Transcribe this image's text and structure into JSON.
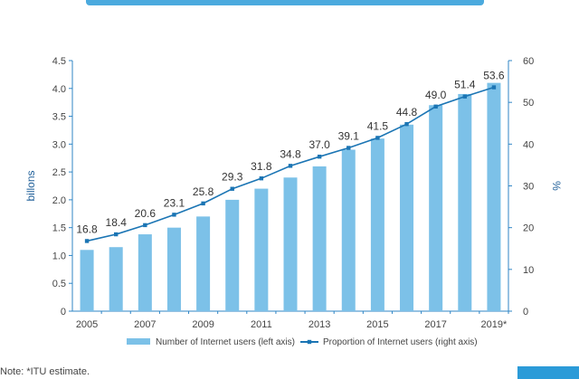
{
  "colors": {
    "bar": "#7cc1e8",
    "line": "#1b75b4",
    "axis_text": "#444444",
    "data_label": "#333333",
    "axis": "#2f86c6",
    "title": "#2b9bd8",
    "corner": "#2b9bd8"
  },
  "note": "Note: *ITU estimate.",
  "chart_data": {
    "type": "bar",
    "title": "",
    "categories": [
      "2005",
      "2006",
      "2007",
      "2008",
      "2009",
      "2010",
      "2011",
      "2012",
      "2013",
      "2014",
      "2015",
      "2016",
      "2017",
      "2018",
      "2019*"
    ],
    "x_tick_labels": [
      "2005",
      "",
      "2007",
      "",
      "2009",
      "",
      "2011",
      "",
      "2013",
      "",
      "2015",
      "",
      "2017",
      "",
      "2019*"
    ],
    "series": [
      {
        "name": "Number of Internet users (left axis)",
        "type": "bar",
        "axis": "left",
        "values": [
          1.1,
          1.15,
          1.38,
          1.5,
          1.7,
          2.0,
          2.2,
          2.4,
          2.6,
          2.9,
          3.1,
          3.35,
          3.7,
          3.9,
          4.1
        ]
      },
      {
        "name": "Proportion of Internet users (right axis)",
        "type": "line",
        "axis": "right",
        "values": [
          16.8,
          18.4,
          20.6,
          23.1,
          25.8,
          29.3,
          31.8,
          34.8,
          37.0,
          39.1,
          41.5,
          44.8,
          49.0,
          51.4,
          53.6
        ],
        "data_labels": [
          "16.8",
          "18.4",
          "20.6",
          "23.1",
          "25.8",
          "29.3",
          "31.8",
          "34.8",
          "37.0",
          "39.1",
          "41.5",
          "44.8",
          "49.0",
          "51.4",
          "53.6"
        ]
      }
    ],
    "ylabel": "billons",
    "y2label": "%",
    "ylim": [
      0,
      4.5
    ],
    "y_ticks": [
      "0",
      "0.5",
      "1.0",
      "1.5",
      "2.0",
      "2.5",
      "3.0",
      "3.5",
      "4.0",
      "4.5"
    ],
    "y2lim": [
      0,
      60
    ],
    "y2_ticks": [
      "0",
      "10",
      "20",
      "30",
      "40",
      "50",
      "60"
    ],
    "grid": false,
    "legend_position": "bottom"
  }
}
